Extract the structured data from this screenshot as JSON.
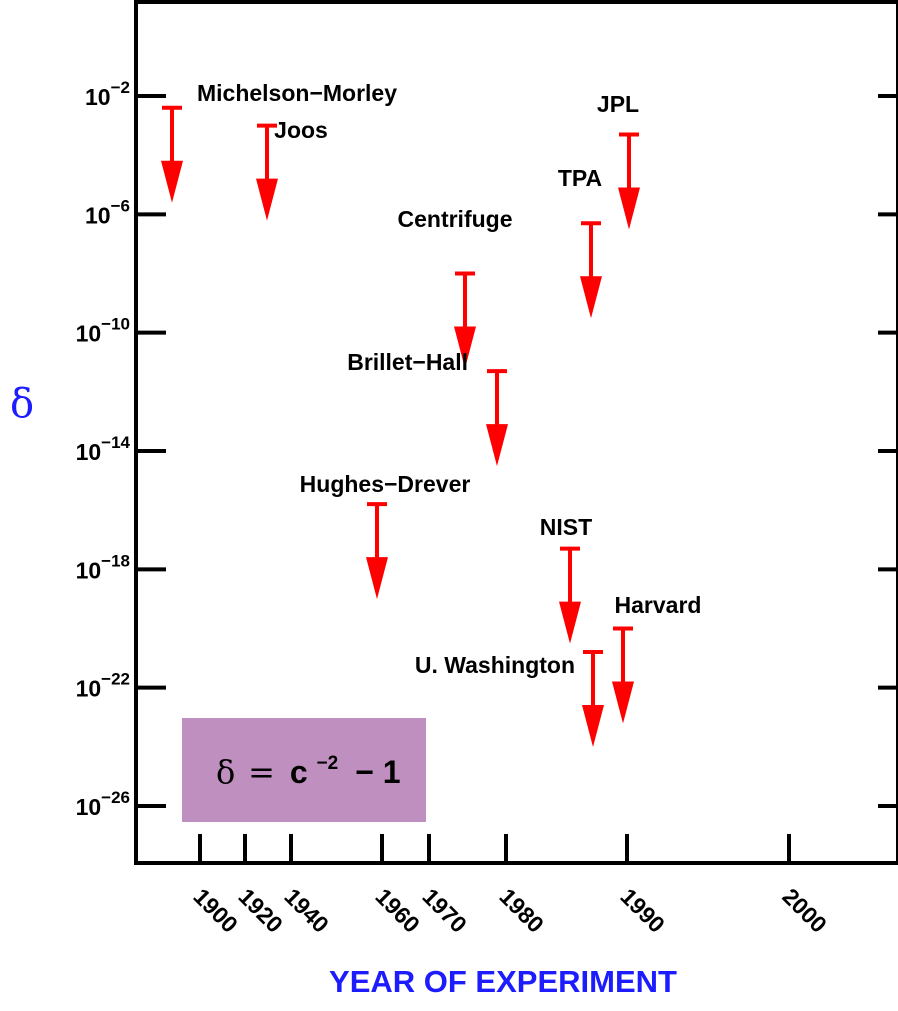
{
  "chart_data": {
    "type": "scatter",
    "title": "",
    "xlabel": "YEAR OF EXPERIMENT",
    "ylabel": "δ",
    "yscale": "log",
    "marker": "upper-limit-arrow",
    "y_ticks": [
      {
        "exp": "-2",
        "value": 0.01
      },
      {
        "exp": "-6",
        "value": 1e-06
      },
      {
        "exp": "-10",
        "value": 1e-10
      },
      {
        "exp": "-14",
        "value": 1e-14
      },
      {
        "exp": "-18",
        "value": 1e-18
      },
      {
        "exp": "-22",
        "value": 1e-22
      },
      {
        "exp": "-26",
        "value": 1e-26
      }
    ],
    "x_ticks": [
      "1900",
      "1920",
      "1940",
      "1960",
      "1970",
      "1980",
      "1990",
      "2000"
    ],
    "points": [
      {
        "name": "Michelson−Morley",
        "year_tick": "1900",
        "upper_limit": 0.004
      },
      {
        "name": "Joos",
        "year_tick": "1930",
        "upper_limit": 0.001
      },
      {
        "name": "Centrifuge",
        "year_tick": "1970",
        "upper_limit": 1e-08
      },
      {
        "name": "Brillet−Hall",
        "year_tick": "1979",
        "upper_limit": 5e-12
      },
      {
        "name": "Hughes−Drever",
        "year_tick": "1960",
        "upper_limit": 1.6e-16
      },
      {
        "name": "TPA",
        "year_tick": "1985",
        "upper_limit": 5e-07
      },
      {
        "name": "JPL",
        "year_tick": "1990",
        "upper_limit": 0.0005
      },
      {
        "name": "NIST",
        "year_tick": "1989",
        "upper_limit": 5e-18
      },
      {
        "name": "U. Washington",
        "year_tick": "1990",
        "upper_limit": 1.6e-21
      },
      {
        "name": "Harvard",
        "year_tick": "1991",
        "upper_limit": 1e-20
      }
    ],
    "annotation": {
      "formula_delta": "δ",
      "formula_eq": "=",
      "formula_c": "c",
      "formula_exp": "−2",
      "formula_rest": "− 1"
    },
    "colors": {
      "arrow": "#ff0000",
      "axis_title": "#1c1cff",
      "annotation_box": "#bf8fbf"
    }
  }
}
